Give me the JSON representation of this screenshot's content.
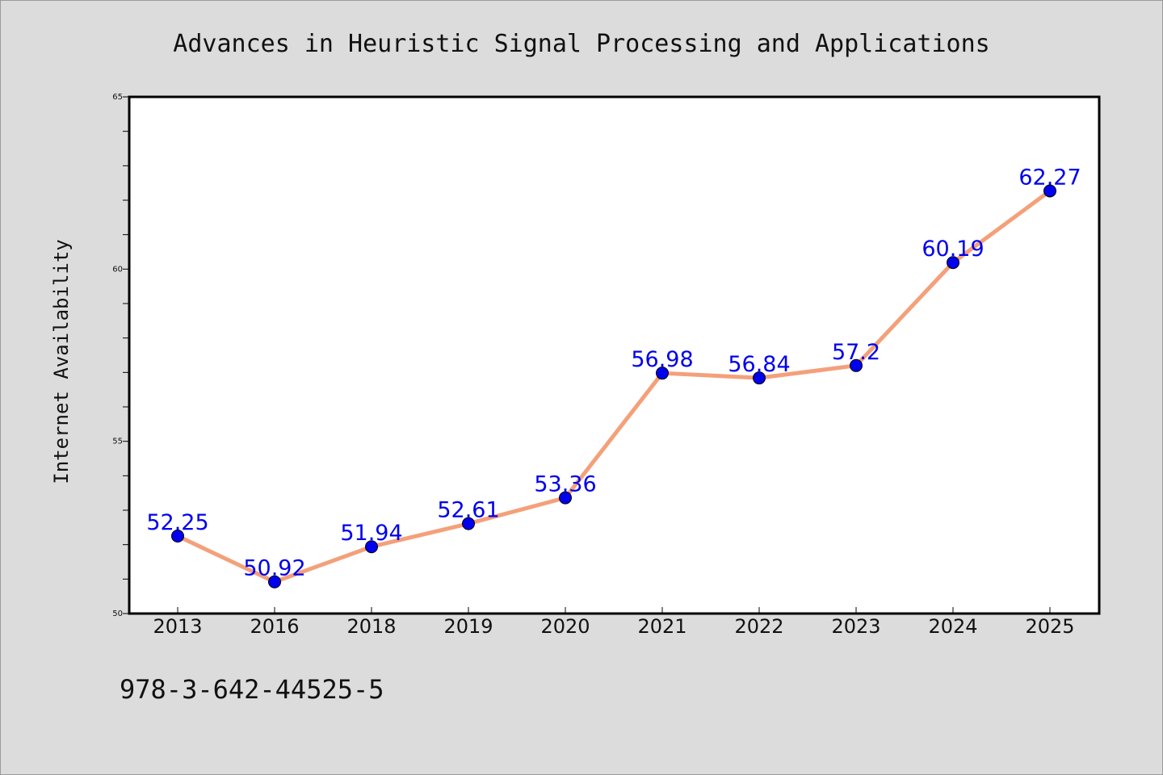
{
  "chart_data": {
    "type": "line",
    "title": "Advances in Heuristic Signal Processing and Applications",
    "xlabel": "",
    "ylabel": "Internet Availability",
    "categories": [
      "2013",
      "2016",
      "2018",
      "2019",
      "2020",
      "2021",
      "2022",
      "2023",
      "2024",
      "2025"
    ],
    "values": [
      52.25,
      50.92,
      51.94,
      52.61,
      53.36,
      56.98,
      56.84,
      57.2,
      60.19,
      62.27
    ],
    "data_labels": [
      "52.25",
      "50.92",
      "51.94",
      "52.61",
      "53.36",
      "56.98",
      "56.84",
      "57.2",
      "60.19",
      "62.27"
    ],
    "ylim": [
      50,
      65
    ],
    "yticks": [
      50,
      55,
      60,
      65
    ],
    "grid": false,
    "colors": {
      "line": "#f4a07a",
      "marker": "#0000ee",
      "label": "#0000ee",
      "plot_bg": "#ffffff",
      "page_bg": "#dcdcdc"
    }
  },
  "footer": {
    "isbn": "978-3-642-44525-5"
  }
}
